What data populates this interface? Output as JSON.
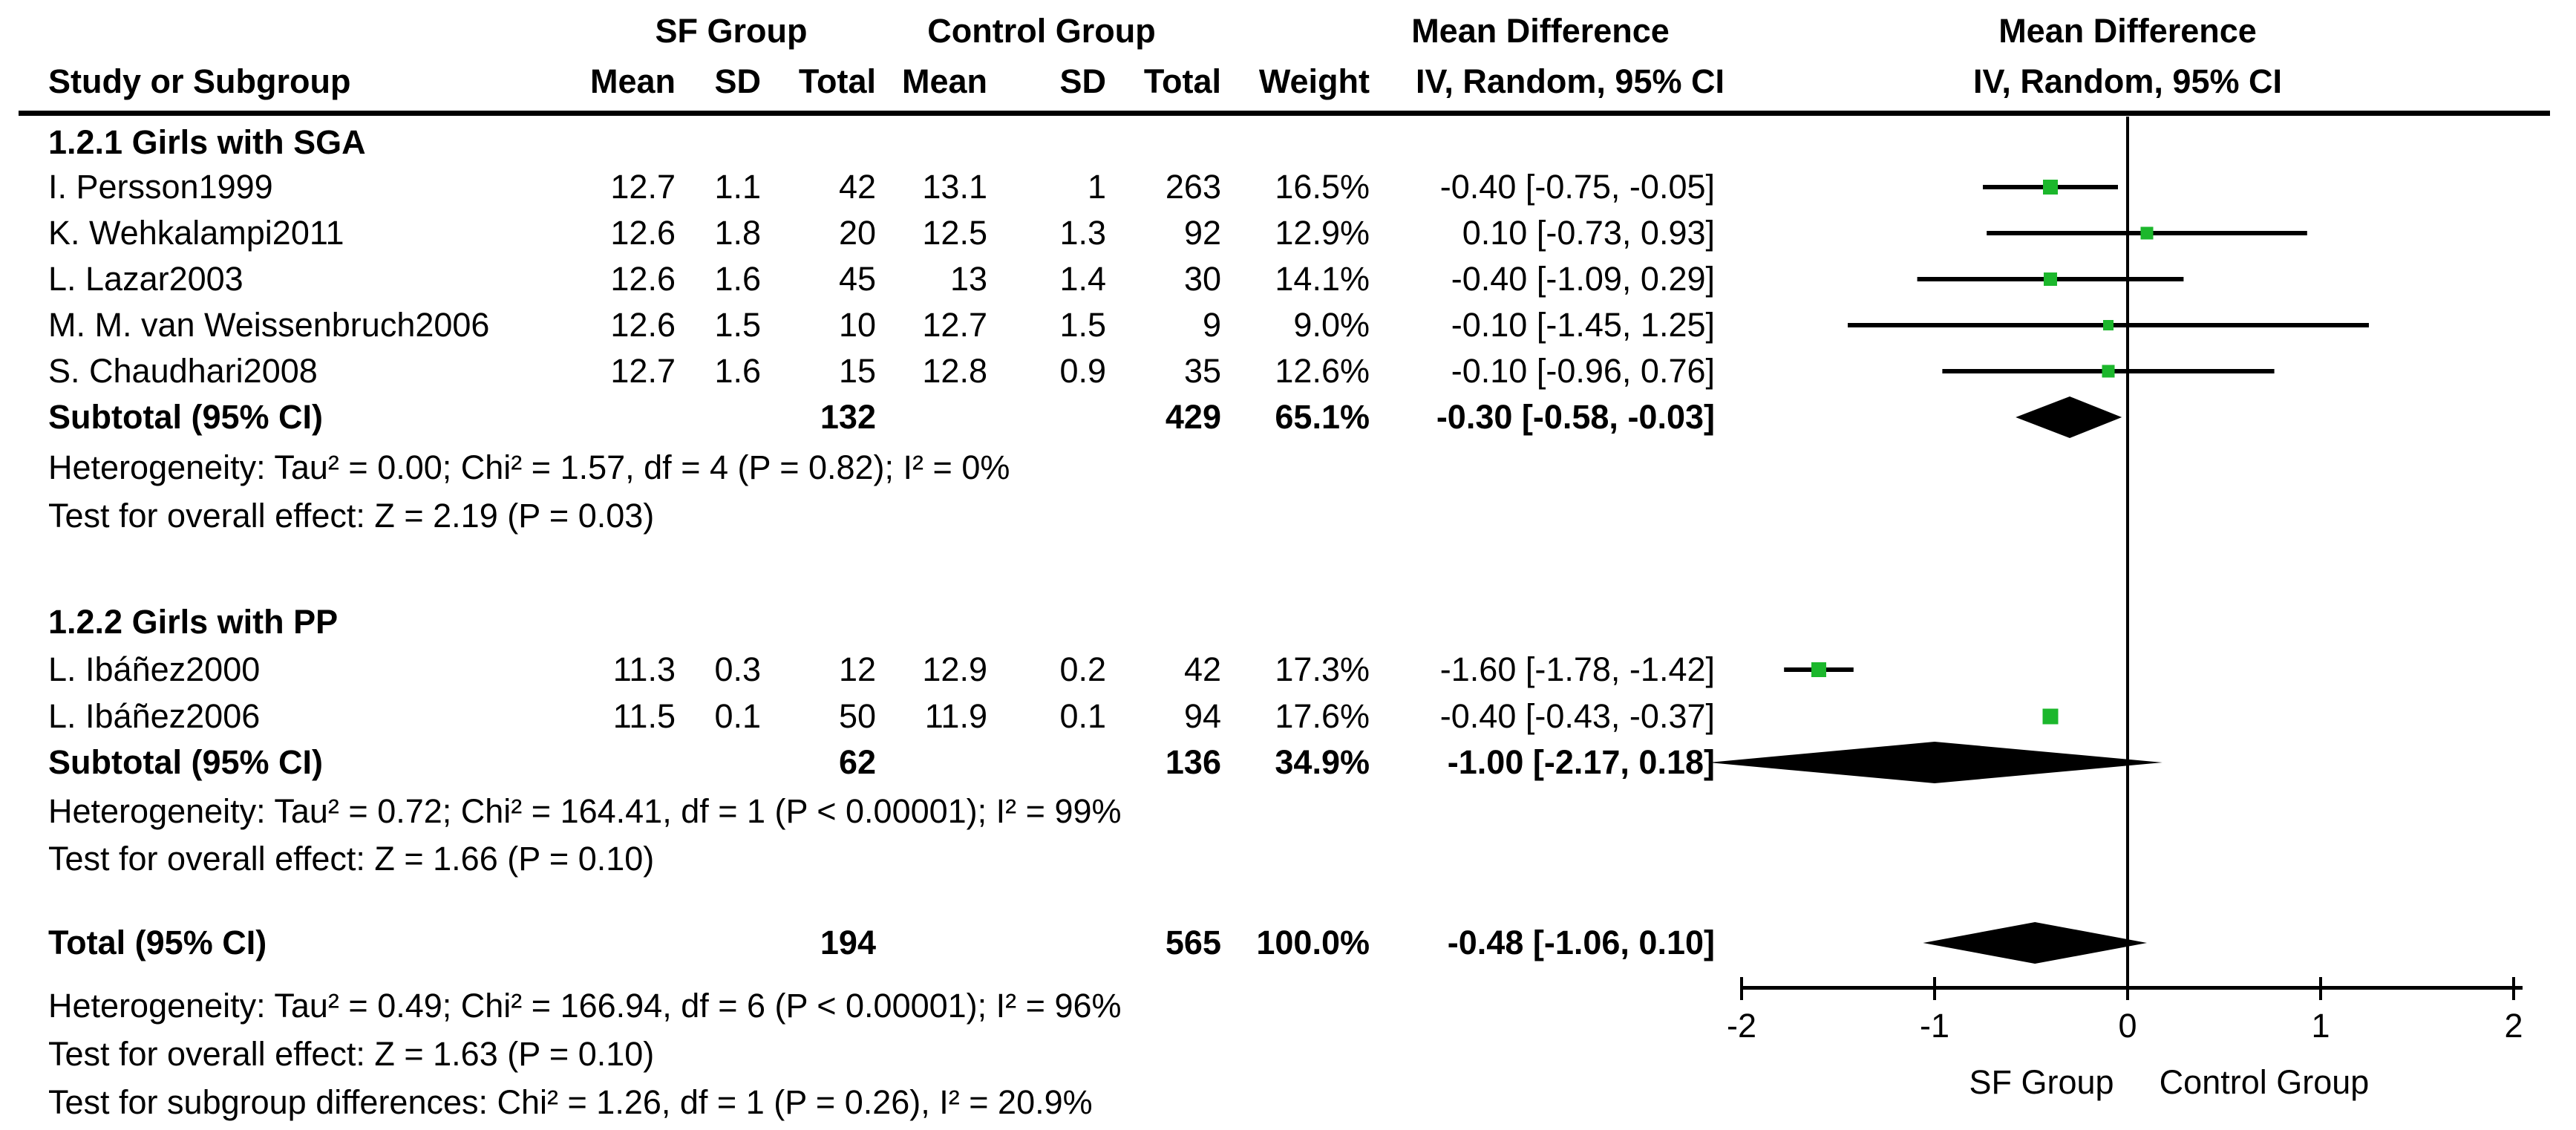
{
  "header": {
    "sf_group": "SF Group",
    "control_group": "Control Group",
    "mean_difference": "Mean Difference",
    "study": "Study or Subgroup",
    "mean": "Mean",
    "sd": "SD",
    "total": "Total",
    "weight": "Weight",
    "iv": "IV, Random, 95% CI"
  },
  "colors": {
    "marker_green": "#1CB72C",
    "ink": "#000000"
  },
  "chart_data": {
    "type": "scatter",
    "variant": "forest-plot (meta-analysis, mean difference, IV random effects)",
    "effect_measure": "Mean Difference",
    "method": "IV, Random, 95% CI",
    "x_axis": {
      "min": -2,
      "max": 2,
      "tick_values": [
        -2,
        -1,
        0,
        1,
        2
      ],
      "tick_labels": [
        "-2",
        "-1",
        "0",
        "1",
        "2"
      ],
      "left_label": "SF Group",
      "right_label": "Control Group"
    },
    "groups": [
      {
        "label": "1.2.1 Girls with SGA",
        "studies": [
          {
            "name": "I. Persson1999",
            "mean_sf": "12.7",
            "sd_sf": "1.1",
            "total_sf": "42",
            "mean_c": "13.1",
            "sd_c": "1",
            "total_c": "263",
            "weight": "16.5%",
            "weight_pct": 16.5,
            "ci_label": "-0.40 [-0.75, -0.05]",
            "est": -0.4,
            "lo": -0.75,
            "hi": -0.05
          },
          {
            "name": "K. Wehkalampi2011",
            "mean_sf": "12.6",
            "sd_sf": "1.8",
            "total_sf": "20",
            "mean_c": "12.5",
            "sd_c": "1.3",
            "total_c": "92",
            "weight": "12.9%",
            "weight_pct": 12.9,
            "ci_label": "0.10 [-0.73, 0.93]",
            "est": 0.1,
            "lo": -0.73,
            "hi": 0.93
          },
          {
            "name": "L. Lazar2003",
            "mean_sf": "12.6",
            "sd_sf": "1.6",
            "total_sf": "45",
            "mean_c": "13",
            "sd_c": "1.4",
            "total_c": "30",
            "weight": "14.1%",
            "weight_pct": 14.1,
            "ci_label": "-0.40 [-1.09, 0.29]",
            "est": -0.4,
            "lo": -1.09,
            "hi": 0.29
          },
          {
            "name": "M. M. van Weissenbruch2006",
            "mean_sf": "12.6",
            "sd_sf": "1.5",
            "total_sf": "10",
            "mean_c": "12.7",
            "sd_c": "1.5",
            "total_c": "9",
            "weight": "9.0%",
            "weight_pct": 9.0,
            "ci_label": "-0.10 [-1.45, 1.25]",
            "est": -0.1,
            "lo": -1.45,
            "hi": 1.25
          },
          {
            "name": "S. Chaudhari2008",
            "mean_sf": "12.7",
            "sd_sf": "1.6",
            "total_sf": "15",
            "mean_c": "12.8",
            "sd_c": "0.9",
            "total_c": "35",
            "weight": "12.6%",
            "weight_pct": 12.6,
            "ci_label": "-0.10 [-0.96, 0.76]",
            "est": -0.1,
            "lo": -0.96,
            "hi": 0.76
          }
        ],
        "subtotal": {
          "label": "Subtotal (95% CI)",
          "total_sf": "132",
          "total_c": "429",
          "weight": "65.1%",
          "ci_label": "-0.30 [-0.58, -0.03]",
          "est": -0.3,
          "lo": -0.58,
          "hi": -0.03
        },
        "heterogeneity": "Heterogeneity: Tau² = 0.00; Chi² = 1.57, df = 4 (P = 0.82); I² = 0%",
        "overall_effect": "Test for overall effect: Z = 2.19 (P = 0.03)"
      },
      {
        "label": "1.2.2 Girls with PP",
        "studies": [
          {
            "name": "L. Ibáñez2000",
            "mean_sf": "11.3",
            "sd_sf": "0.3",
            "total_sf": "12",
            "mean_c": "12.9",
            "sd_c": "0.2",
            "total_c": "42",
            "weight": "17.3%",
            "weight_pct": 17.3,
            "ci_label": "-1.60 [-1.78, -1.42]",
            "est": -1.6,
            "lo": -1.78,
            "hi": -1.42
          },
          {
            "name": "L. Ibáñez2006",
            "mean_sf": "11.5",
            "sd_sf": "0.1",
            "total_sf": "50",
            "mean_c": "11.9",
            "sd_c": "0.1",
            "total_c": "94",
            "weight": "17.6%",
            "weight_pct": 17.6,
            "ci_label": "-0.40 [-0.43, -0.37]",
            "est": -0.4,
            "lo": -0.43,
            "hi": -0.37
          }
        ],
        "subtotal": {
          "label": "Subtotal (95% CI)",
          "total_sf": "62",
          "total_c": "136",
          "weight": "34.9%",
          "ci_label": "-1.00 [-2.17, 0.18]",
          "est": -1.0,
          "lo": -2.17,
          "hi": 0.18
        },
        "heterogeneity": "Heterogeneity: Tau² = 0.72; Chi² = 164.41, df = 1 (P < 0.00001); I² = 99%",
        "overall_effect": "Test for overall effect: Z = 1.66 (P = 0.10)"
      }
    ],
    "total": {
      "label": "Total (95% CI)",
      "total_sf": "194",
      "total_c": "565",
      "weight": "100.0%",
      "ci_label": "-0.48 [-1.06, 0.10]",
      "est": -0.48,
      "lo": -1.06,
      "hi": 0.1,
      "heterogeneity": "Heterogeneity: Tau² = 0.49; Chi² = 166.94, df = 6 (P < 0.00001); I² = 96%",
      "overall_effect": "Test for overall effect: Z = 1.63 (P = 0.10)",
      "subgroup_differences": "Test for subgroup differences: Chi² = 1.26, df = 1 (P = 0.26), I² = 20.9%"
    }
  }
}
